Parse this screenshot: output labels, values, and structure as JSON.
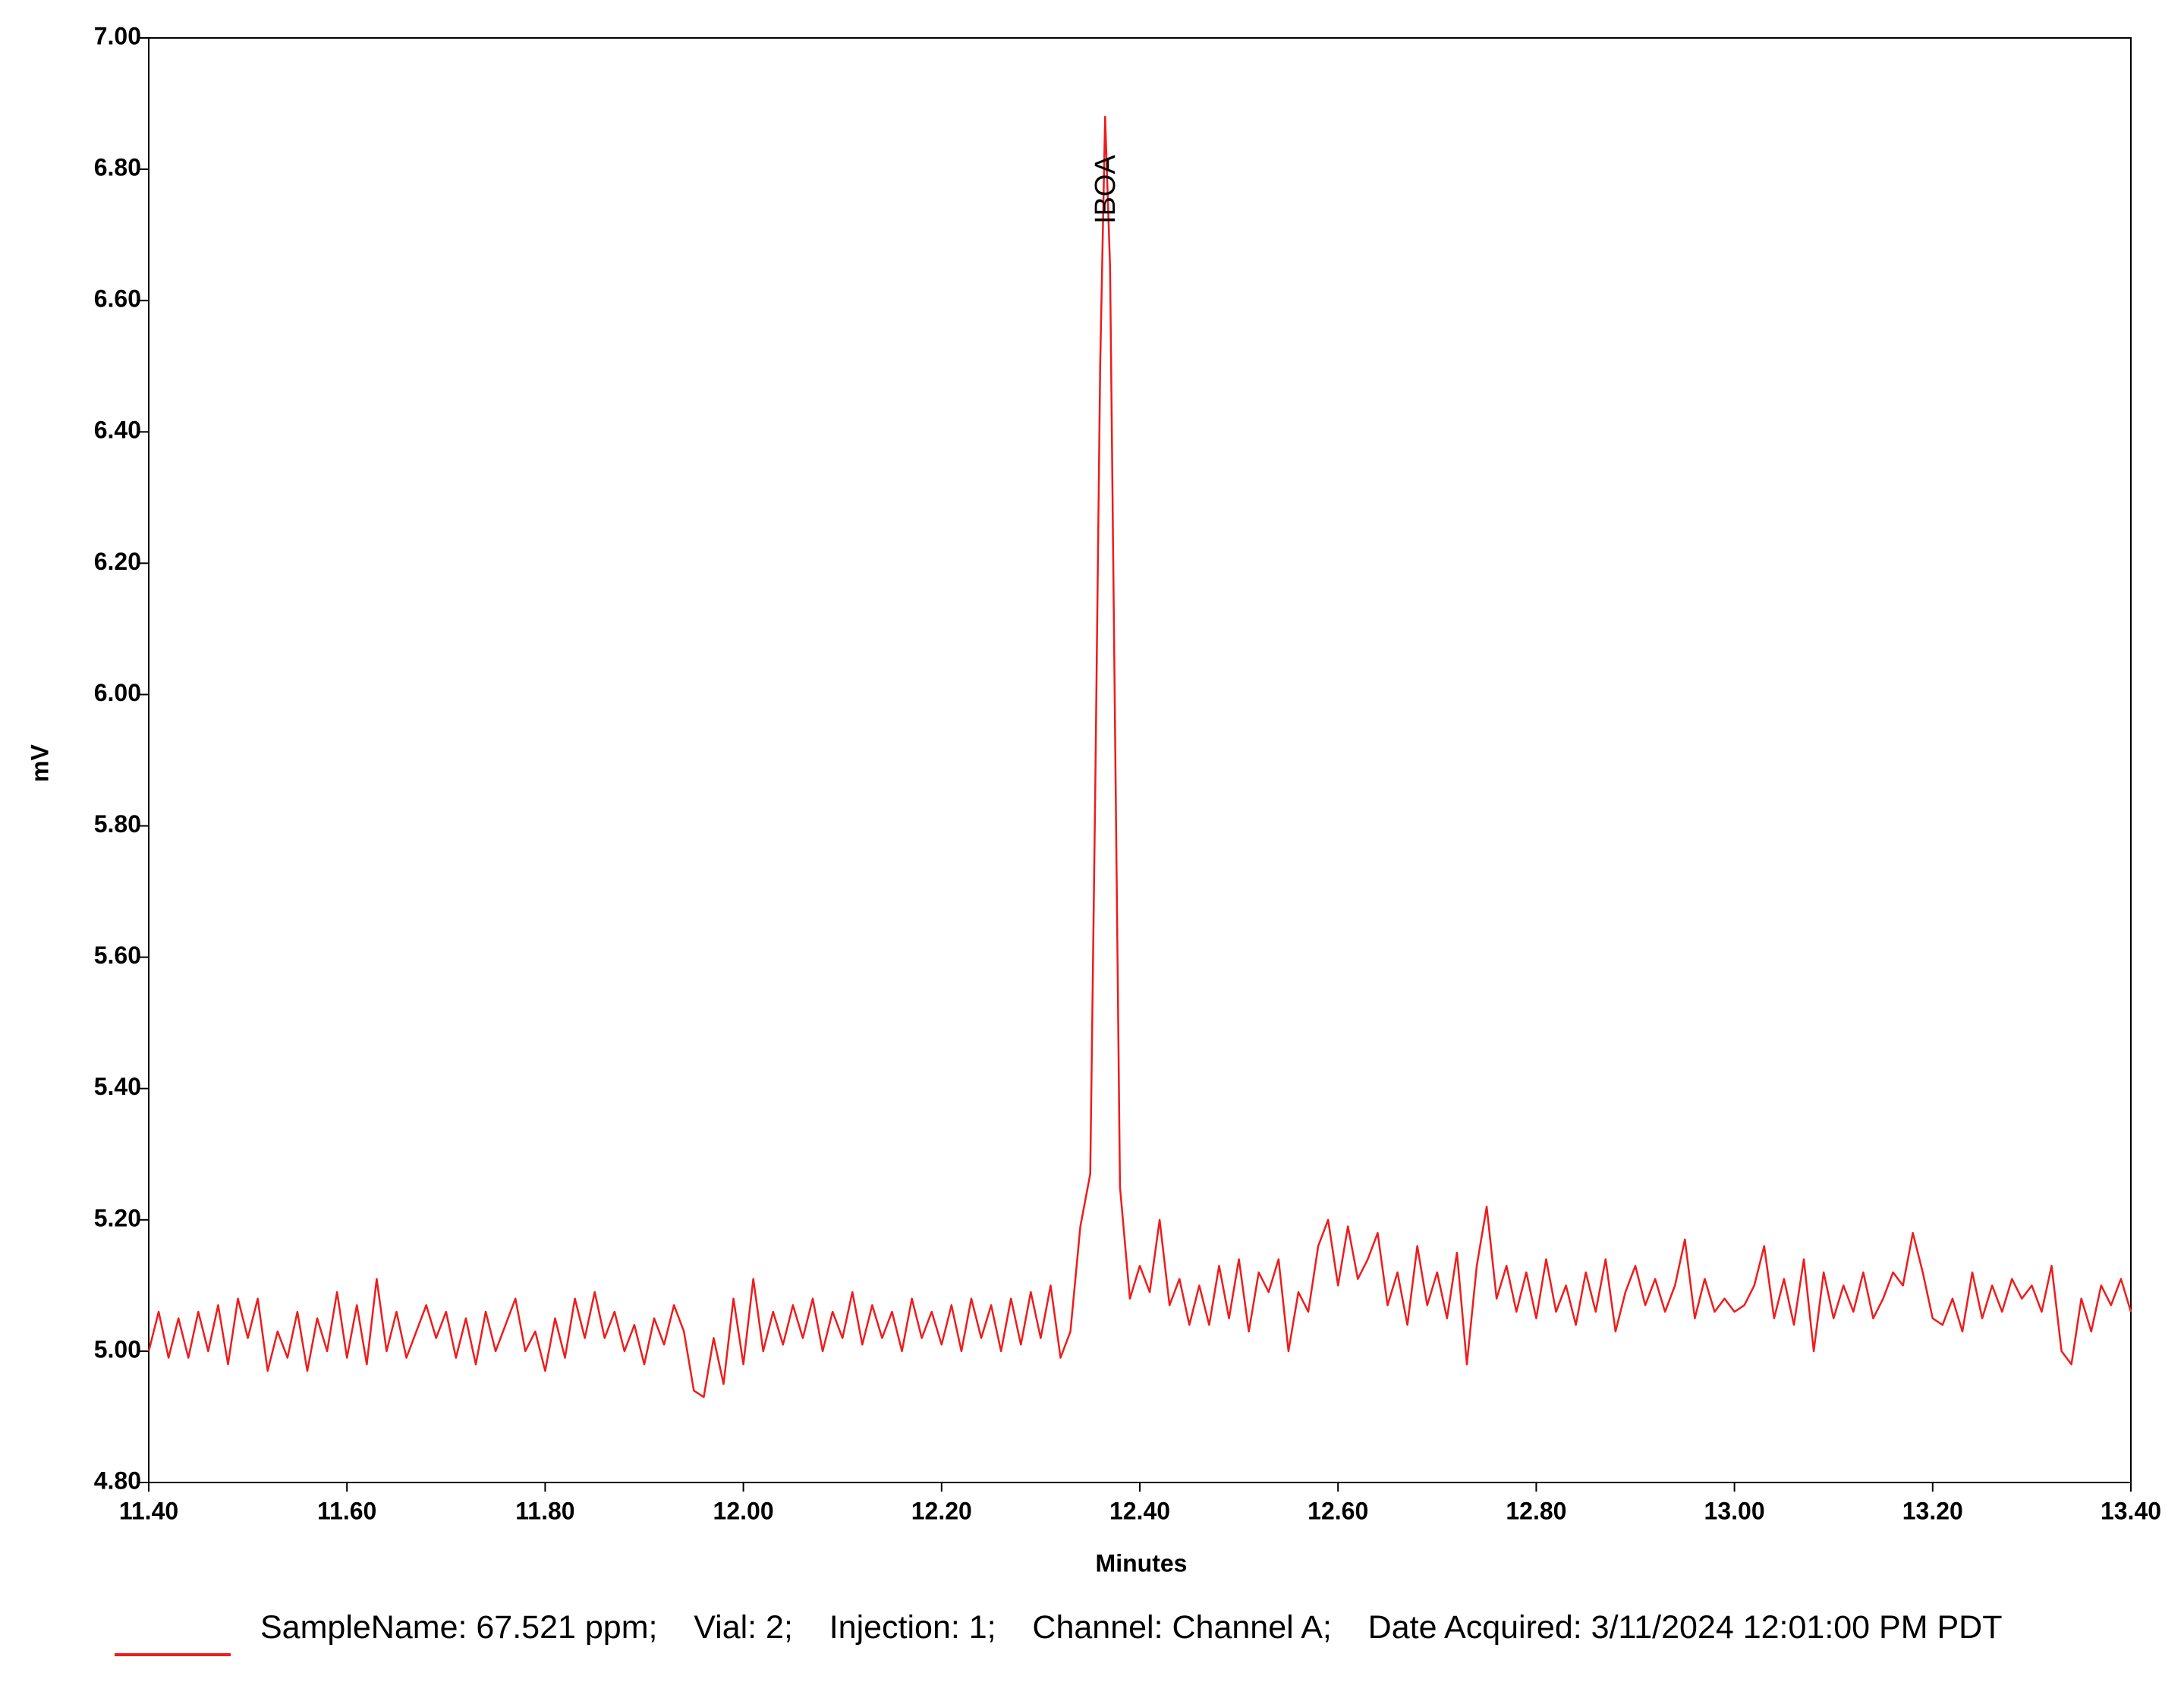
{
  "chart_data": {
    "type": "line",
    "xlabel": "Minutes",
    "ylabel": "mV",
    "xlim": [
      11.4,
      13.4
    ],
    "ylim": [
      4.8,
      7.0
    ],
    "xticks": [
      {
        "value": 11.4,
        "label": "11.40"
      },
      {
        "value": 11.6,
        "label": "11.60"
      },
      {
        "value": 11.8,
        "label": "11.80"
      },
      {
        "value": 12.0,
        "label": "12.00"
      },
      {
        "value": 12.2,
        "label": "12.20"
      },
      {
        "value": 12.4,
        "label": "12.40"
      },
      {
        "value": 12.6,
        "label": "12.60"
      },
      {
        "value": 12.8,
        "label": "12.80"
      },
      {
        "value": 13.0,
        "label": "13.00"
      },
      {
        "value": 13.2,
        "label": "13.20"
      },
      {
        "value": 13.4,
        "label": "13.40"
      }
    ],
    "yticks": [
      {
        "value": 4.8,
        "label": "4.80"
      },
      {
        "value": 5.0,
        "label": "5.00"
      },
      {
        "value": 5.2,
        "label": "5.20"
      },
      {
        "value": 5.4,
        "label": "5.40"
      },
      {
        "value": 5.6,
        "label": "5.60"
      },
      {
        "value": 5.8,
        "label": "5.80"
      },
      {
        "value": 6.0,
        "label": "6.00"
      },
      {
        "value": 6.2,
        "label": "6.20"
      },
      {
        "value": 6.4,
        "label": "6.40"
      },
      {
        "value": 6.6,
        "label": "6.60"
      },
      {
        "value": 6.8,
        "label": "6.80"
      },
      {
        "value": 7.0,
        "label": "7.00"
      }
    ],
    "annotations": [
      {
        "text": "IBOA",
        "x": 12.367
      }
    ],
    "x": [
      11.4,
      11.41,
      11.42,
      11.43,
      11.44,
      11.45,
      11.46,
      11.47,
      11.48,
      11.49,
      11.5,
      11.51,
      11.52,
      11.53,
      11.54,
      11.55,
      11.56,
      11.57,
      11.58,
      11.59,
      11.6,
      11.61,
      11.62,
      11.63,
      11.64,
      11.65,
      11.66,
      11.67,
      11.68,
      11.69,
      11.7,
      11.71,
      11.72,
      11.73,
      11.74,
      11.75,
      11.76,
      11.77,
      11.78,
      11.79,
      11.8,
      11.81,
      11.82,
      11.83,
      11.84,
      11.85,
      11.86,
      11.87,
      11.88,
      11.89,
      11.9,
      11.91,
      11.92,
      11.93,
      11.94,
      11.95,
      11.96,
      11.97,
      11.98,
      11.99,
      12.0,
      12.01,
      12.02,
      12.03,
      12.04,
      12.05,
      12.06,
      12.07,
      12.08,
      12.09,
      12.1,
      12.11,
      12.12,
      12.13,
      12.14,
      12.15,
      12.16,
      12.17,
      12.18,
      12.19,
      12.2,
      12.21,
      12.22,
      12.23,
      12.24,
      12.25,
      12.26,
      12.27,
      12.28,
      12.29,
      12.3,
      12.31,
      12.32,
      12.33,
      12.34,
      12.35,
      12.355,
      12.36,
      12.365,
      12.37,
      12.375,
      12.38,
      12.39,
      12.4,
      12.41,
      12.42,
      12.43,
      12.44,
      12.45,
      12.46,
      12.47,
      12.48,
      12.49,
      12.5,
      12.51,
      12.52,
      12.53,
      12.54,
      12.55,
      12.56,
      12.57,
      12.58,
      12.59,
      12.6,
      12.61,
      12.62,
      12.63,
      12.64,
      12.65,
      12.66,
      12.67,
      12.68,
      12.69,
      12.7,
      12.71,
      12.72,
      12.73,
      12.74,
      12.75,
      12.76,
      12.77,
      12.78,
      12.79,
      12.8,
      12.81,
      12.82,
      12.83,
      12.84,
      12.85,
      12.86,
      12.87,
      12.88,
      12.89,
      12.9,
      12.91,
      12.92,
      12.93,
      12.94,
      12.95,
      12.96,
      12.97,
      12.98,
      12.99,
      13.0,
      13.01,
      13.02,
      13.03,
      13.04,
      13.05,
      13.06,
      13.07,
      13.08,
      13.09,
      13.1,
      13.11,
      13.12,
      13.13,
      13.14,
      13.15,
      13.16,
      13.17,
      13.18,
      13.19,
      13.2,
      13.21,
      13.22,
      13.23,
      13.24,
      13.25,
      13.26,
      13.27,
      13.28,
      13.29,
      13.3,
      13.31,
      13.32,
      13.33,
      13.34,
      13.35,
      13.36,
      13.37,
      13.38,
      13.39,
      13.4
    ],
    "series": [
      {
        "name": "SampleName: 67.521 ppm;    Vial: 2;    Injection: 1;    Channel: Channel A;    Date Acquired: 3/11/2024 12:01:00 PM PDT",
        "color": "#ee1c1c",
        "values": [
          5.0,
          5.06,
          4.99,
          5.05,
          4.99,
          5.06,
          5.0,
          5.07,
          4.98,
          5.08,
          5.02,
          5.08,
          4.97,
          5.03,
          4.99,
          5.06,
          4.97,
          5.05,
          5.0,
          5.09,
          4.99,
          5.07,
          4.98,
          5.11,
          5.0,
          5.06,
          4.99,
          5.03,
          5.07,
          5.02,
          5.06,
          4.99,
          5.05,
          4.98,
          5.06,
          5.0,
          5.04,
          5.08,
          5.0,
          5.03,
          4.97,
          5.05,
          4.99,
          5.08,
          5.02,
          5.09,
          5.02,
          5.06,
          5.0,
          5.04,
          4.98,
          5.05,
          5.01,
          5.07,
          5.03,
          4.94,
          4.93,
          5.02,
          4.95,
          5.08,
          4.98,
          5.11,
          5.0,
          5.06,
          5.01,
          5.07,
          5.02,
          5.08,
          5.0,
          5.06,
          5.02,
          5.09,
          5.01,
          5.07,
          5.02,
          5.06,
          5.0,
          5.08,
          5.02,
          5.06,
          5.01,
          5.07,
          5.0,
          5.08,
          5.02,
          5.07,
          5.0,
          5.08,
          5.01,
          5.09,
          5.02,
          5.1,
          4.99,
          5.03,
          5.19,
          5.27,
          5.85,
          6.5,
          6.88,
          6.65,
          5.95,
          5.25,
          5.08,
          5.13,
          5.09,
          5.2,
          5.07,
          5.11,
          5.04,
          5.1,
          5.04,
          5.13,
          5.05,
          5.14,
          5.03,
          5.12,
          5.09,
          5.14,
          5.0,
          5.09,
          5.06,
          5.16,
          5.2,
          5.1,
          5.19,
          5.11,
          5.14,
          5.18,
          5.07,
          5.12,
          5.04,
          5.16,
          5.07,
          5.12,
          5.05,
          5.15,
          4.98,
          5.13,
          5.22,
          5.08,
          5.13,
          5.06,
          5.12,
          5.05,
          5.14,
          5.06,
          5.1,
          5.04,
          5.12,
          5.06,
          5.14,
          5.03,
          5.09,
          5.13,
          5.07,
          5.11,
          5.06,
          5.1,
          5.17,
          5.05,
          5.11,
          5.06,
          5.08,
          5.06,
          5.07,
          5.1,
          5.16,
          5.05,
          5.11,
          5.04,
          5.14,
          5.0,
          5.12,
          5.05,
          5.1,
          5.06,
          5.12,
          5.05,
          5.08,
          5.12,
          5.1,
          5.18,
          5.12,
          5.05,
          5.04,
          5.08,
          5.03,
          5.12,
          5.05,
          5.1,
          5.06,
          5.11,
          5.08,
          5.1,
          5.06,
          5.13,
          5.0,
          4.98,
          5.08,
          5.03,
          5.1,
          5.07,
          5.11,
          5.06
        ]
      }
    ]
  }
}
